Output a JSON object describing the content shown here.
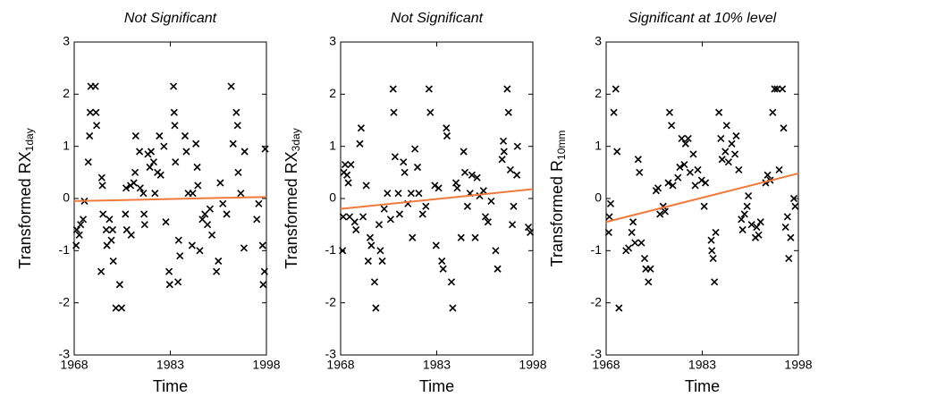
{
  "chart_data": [
    {
      "type": "scatter",
      "title": "Not Significant",
      "xlabel": "Time",
      "ylabel": "Transformed RX",
      "ylabel_sub": "1day",
      "xlim": [
        1968,
        1998
      ],
      "ylim": [
        -3,
        3
      ],
      "xticks": [
        1968,
        1983,
        1998
      ],
      "yticks": [
        -3,
        -2,
        -1,
        0,
        1,
        2,
        3
      ],
      "points": {
        "color": "#000000",
        "x": [
          1968.3,
          1968.4,
          1968.8,
          1969,
          1969.4,
          1969.6,
          1970.2,
          1970.4,
          1970.5,
          1970.6,
          1971.3,
          1971.4,
          1971.5,
          1972.2,
          1972.3,
          1972.4,
          1972.5,
          1973,
          1973.1,
          1973.5,
          1973.8,
          1974,
          1974.1,
          1974.5,
          1975.1,
          1975.4,
          1976,
          1976.1,
          1976.2,
          1976.8,
          1976.9,
          1977.3,
          1977.5,
          1977.6,
          1978.2,
          1978.3,
          1978.8,
          1978.9,
          1979,
          1979.5,
          1979.8,
          1980,
          1980.4,
          1980.6,
          1981,
          1981.3,
          1981.5,
          1982,
          1982.3,
          1982.8,
          1982.9,
          1983.5,
          1983.6,
          1983.7,
          1983.8,
          1984.2,
          1984.3,
          1984.5,
          1985.3,
          1985.5,
          1985.8,
          1986.4,
          1986.5,
          1987,
          1987.2,
          1987.3,
          1987.6,
          1988,
          1988.4,
          1988.8,
          1989.2,
          1989.5,
          1990.2,
          1990.5,
          1990.8,
          1991.2,
          1991.8,
          1992.5,
          1992.8,
          1993.3,
          1993.5,
          1993.6,
          1994,
          1994.5,
          1994.6,
          1996.5,
          1996.8,
          1997.4,
          1997.5,
          1997.7,
          1997.8
        ],
        "y": [
          -0.9,
          -0.6,
          -0.7,
          -0.5,
          -0.4,
          -0.05,
          0.7,
          1.2,
          1.65,
          2.15,
          2.15,
          1.65,
          1.4,
          -1.4,
          0.4,
          0.25,
          -0.3,
          -0.6,
          -0.9,
          -0.4,
          -0.8,
          -0.6,
          -1.2,
          -2.1,
          -1.65,
          -2.1,
          -0.3,
          0.2,
          -0.6,
          0.25,
          -0.7,
          0.3,
          0.5,
          1.2,
          0.9,
          0.2,
          0.1,
          -0.3,
          -0.5,
          0.85,
          0.6,
          0.9,
          0.7,
          0.1,
          0.5,
          1.2,
          0.45,
          1.0,
          -0.45,
          -1.4,
          -1.65,
          2.15,
          1.65,
          1.4,
          0.7,
          -1.6,
          -0.8,
          -1.1,
          1.2,
          0.9,
          0.1,
          -0.9,
          0.1,
          1.05,
          0.6,
          0.25,
          -1.0,
          -0.4,
          -0.3,
          -0.5,
          -0.2,
          -0.7,
          -1.4,
          -1.2,
          0.3,
          -0.1,
          -0.3,
          2.15,
          1.05,
          1.65,
          1.4,
          0.5,
          0.1,
          -0.95,
          0.9,
          -0.4,
          -0.1,
          -0.9,
          -1.65,
          -1.4,
          0.95
        ]
      },
      "trend": {
        "color": "#f07a3c",
        "x": [
          1968,
          1998
        ],
        "y": [
          -0.05,
          0.03
        ]
      }
    },
    {
      "type": "scatter",
      "title": "Not Significant",
      "xlabel": "Time",
      "ylabel": "Transformed RX",
      "ylabel_sub": "3day",
      "xlim": [
        1968,
        1998
      ],
      "ylim": [
        -3,
        3
      ],
      "xticks": [
        1968,
        1983,
        1998
      ],
      "yticks": [
        -3,
        -2,
        -1,
        0,
        1,
        2,
        3
      ],
      "points": {
        "color": "#000000",
        "x": [
          1968.3,
          1968.4,
          1968.5,
          1968.7,
          1969,
          1969.2,
          1969.4,
          1969.6,
          1970.2,
          1970.4,
          1971,
          1971.2,
          1971.5,
          1972,
          1972.3,
          1972.6,
          1972.8,
          1973.3,
          1973.5,
          1974,
          1974.2,
          1974.5,
          1974.8,
          1975.3,
          1975.8,
          1976.2,
          1976.3,
          1976.5,
          1977,
          1977.2,
          1977.8,
          1978,
          1978.5,
          1979,
          1979.2,
          1979.6,
          1980,
          1980.2,
          1980.8,
          1981.3,
          1981.8,
          1982,
          1982.7,
          1982.9,
          1983.3,
          1983.8,
          1984,
          1984.5,
          1984.6,
          1985.3,
          1985.5,
          1986,
          1986.2,
          1986.8,
          1987.2,
          1987.4,
          1987.8,
          1988.2,
          1988.5,
          1989,
          1989.3,
          1989.7,
          1990.3,
          1990.6,
          1991,
          1991.5,
          1992.2,
          1992.5,
          1993.2,
          1993.4,
          1993.5,
          1994,
          1994.2,
          1994.5,
          1994.8,
          1995,
          1995.5,
          1995.6,
          1997.3,
          1997.6
        ],
        "y": [
          -1.0,
          -0.35,
          0.5,
          0.65,
          0.45,
          0.3,
          -0.35,
          0.65,
          -0.45,
          -0.6,
          1.05,
          1.35,
          -0.35,
          0.25,
          -1.2,
          -0.75,
          -0.9,
          -1.6,
          -2.1,
          -0.5,
          -1.0,
          -1.2,
          -0.2,
          0.1,
          -0.4,
          2.1,
          1.65,
          0.8,
          0.1,
          -0.3,
          0.7,
          0.5,
          -0.1,
          0.1,
          -0.75,
          0.95,
          0.6,
          0.1,
          -0.3,
          -0.15,
          2.1,
          1.65,
          0.25,
          -0.9,
          0.2,
          -1.2,
          -1.35,
          1.35,
          1.2,
          -1.6,
          -2.1,
          0.3,
          0.2,
          -0.75,
          0.9,
          0.5,
          -0.15,
          0.1,
          0.45,
          -0.75,
          0.4,
          0.05,
          0.15,
          -0.35,
          -0.45,
          -0.05,
          -1.0,
          -1.35,
          0.75,
          1.1,
          0.9,
          2.1,
          1.65,
          0.55,
          -0.5,
          -0.15,
          0.45,
          1.0,
          -0.55,
          -0.65
        ]
      },
      "trend": {
        "color": "#f07a3c",
        "x": [
          1968,
          1998
        ],
        "y": [
          -0.2,
          0.18
        ]
      }
    },
    {
      "type": "scatter",
      "title": "Significant at 10% level",
      "xlabel": "Time",
      "ylabel": "Transformed R",
      "ylabel_sub": "10mm",
      "xlim": [
        1968,
        1998
      ],
      "ylim": [
        -3,
        3
      ],
      "xticks": [
        1968,
        1983,
        1998
      ],
      "yticks": [
        -3,
        -2,
        -1,
        0,
        1,
        2,
        3
      ],
      "points": {
        "color": "#000000",
        "x": [
          1968.4,
          1968.5,
          1968.7,
          1969.2,
          1969.5,
          1969.7,
          1970,
          1971.1,
          1971.5,
          1972,
          1972.2,
          1972.5,
          1973,
          1973.2,
          1973.5,
          1974,
          1974.2,
          1974.6,
          1974.9,
          1975.8,
          1976.1,
          1976.4,
          1976.9,
          1977.2,
          1977.7,
          1977.9,
          1978.2,
          1978.4,
          1979.2,
          1979.5,
          1979.8,
          1980.2,
          1980.4,
          1980.8,
          1981.1,
          1981.6,
          1981.9,
          1982.3,
          1982.9,
          1983.3,
          1983.5,
          1984.4,
          1984.5,
          1984.7,
          1984.9,
          1985.1,
          1985.6,
          1985.9,
          1986.1,
          1986.6,
          1986.8,
          1987.1,
          1987.6,
          1988.1,
          1988.3,
          1988.7,
          1989.1,
          1989.3,
          1989.6,
          1990,
          1990.2,
          1990.7,
          1991.3,
          1991.5,
          1991.8,
          1992.1,
          1992.9,
          1993.2,
          1993.6,
          1994,
          1994.3,
          1994.7,
          1995,
          1995.5,
          1995.7,
          1996,
          1996.3,
          1996.5,
          1996.8,
          1997.3,
          1997.5
        ],
        "y": [
          -0.65,
          -0.35,
          -0.1,
          1.65,
          2.1,
          0.9,
          -2.1,
          -1.0,
          -0.95,
          -0.65,
          -0.45,
          -0.85,
          0.75,
          0.5,
          -0.85,
          -1.15,
          -1.35,
          -1.6,
          -1.35,
          0.15,
          0.2,
          -0.3,
          -0.15,
          -0.25,
          0.3,
          1.65,
          1.4,
          0.25,
          0.4,
          0.6,
          1.15,
          0.65,
          1.05,
          1.15,
          0.5,
          0.85,
          0.25,
          0.55,
          0.35,
          -0.15,
          0.3,
          -0.8,
          -1.0,
          -1.15,
          -1.6,
          -0.65,
          1.65,
          1.15,
          0.75,
          0.9,
          1.4,
          0.7,
          1.05,
          0.85,
          1.2,
          0.55,
          -0.4,
          -0.6,
          -0.3,
          -0.15,
          0.05,
          -0.5,
          -0.75,
          -0.55,
          -0.7,
          -0.45,
          0.3,
          0.45,
          0.35,
          1.65,
          2.1,
          2.1,
          0.55,
          2.1,
          1.35,
          -0.55,
          -0.35,
          -1.15,
          -0.75,
          0.0,
          -0.15
        ]
      },
      "trend": {
        "color": "#f07a3c",
        "x": [
          1968,
          1998
        ],
        "y": [
          -0.45,
          0.48
        ]
      }
    }
  ]
}
